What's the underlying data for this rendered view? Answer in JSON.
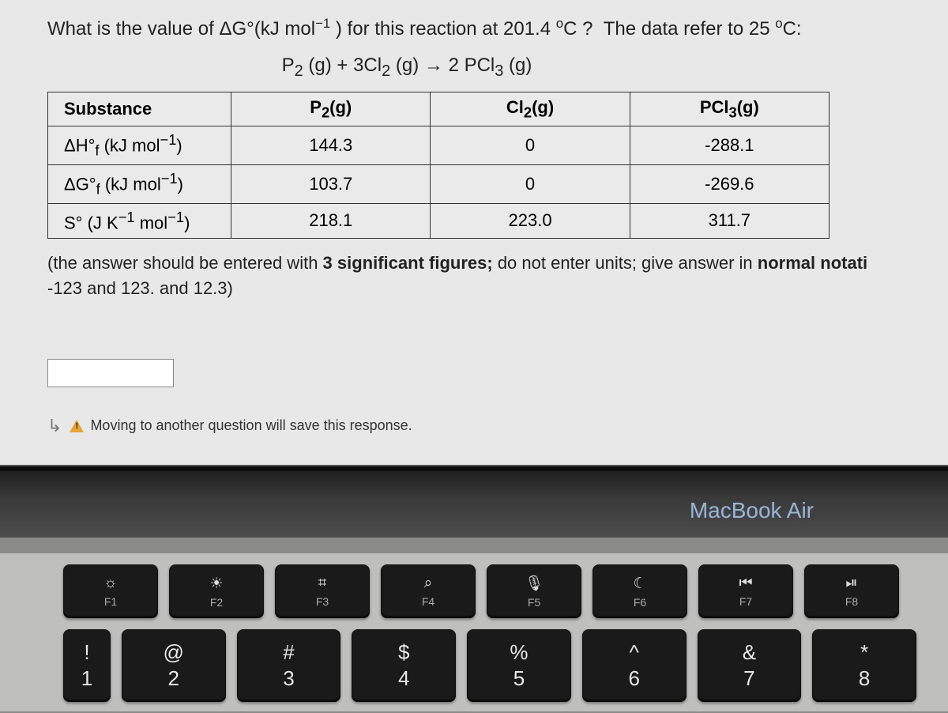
{
  "question": {
    "prefix": "What is the value of ΔG°(kJ mol",
    "exp1": "−1",
    "mid1": " ) for this reaction at ",
    "temp": "201.4",
    "deg": "°C",
    "mid2": " ?   The data refer to 25 ",
    "deg2": "°C:",
    "equation_html": "P<sub>2</sub> (g) + 3Cl<sub>2</sub> (g) → 2 PCl<sub>3</sub> (g)"
  },
  "table": {
    "headers": {
      "c0": "Substance",
      "c1_html": "P<sub>2</sub>(g)",
      "c2_html": "Cl<sub>2</sub>(g)",
      "c3_html": "PCl<sub>3</sub>(g)"
    },
    "rows": [
      {
        "label_html": "ΔH°<sub>f</sub> (kJ mol<sup>−1</sup>)",
        "v1": "144.3",
        "v2": "0",
        "v3": "-288.1"
      },
      {
        "label_html": "ΔG°<sub>f</sub> (kJ mol<sup>−1</sup>)",
        "v1": "103.7",
        "v2": "0",
        "v3": "-269.6"
      },
      {
        "label_html": "S° (J K<sup>−1</sup> mol<sup>−1</sup>)",
        "v1": "218.1",
        "v2": "223.0",
        "v3": "311.7"
      }
    ],
    "col_widths": [
      "230px",
      "250px",
      "250px",
      "250px"
    ],
    "border_color": "#333333",
    "bg_color": "#eaeaea",
    "font_size_pt": 16
  },
  "instruction": {
    "part1": "(the answer should be entered with ",
    "bold": "3 significant figures;",
    "part2": " do not enter units; give answer in ",
    "bold2": "normal notati",
    "line2": "-123 and 123. and 12.3)"
  },
  "save_notice": "Moving to another question will save this response.",
  "brand": "MacBook Air",
  "fkeys": [
    {
      "icon": "☼",
      "label": "F1",
      "name": "brightness-down-icon"
    },
    {
      "icon": "☀",
      "label": "F2",
      "name": "brightness-up-icon"
    },
    {
      "icon": "⌗",
      "label": "F3",
      "name": "mission-control-icon"
    },
    {
      "icon": "⌕",
      "label": "F4",
      "name": "search-icon"
    },
    {
      "icon": "🎙",
      "label": "F5",
      "name": "mic-icon"
    },
    {
      "icon": "☾",
      "label": "F6",
      "name": "dnd-icon"
    },
    {
      "icon": "⏮",
      "label": "F7",
      "name": "prev-track-icon"
    },
    {
      "icon": "⏯",
      "label": "F8",
      "name": "play-pause-icon"
    }
  ],
  "numkeys": [
    {
      "sym": "!",
      "num": "1"
    },
    {
      "sym": "@",
      "num": "2"
    },
    {
      "sym": "#",
      "num": "3"
    },
    {
      "sym": "$",
      "num": "4"
    },
    {
      "sym": "%",
      "num": "5"
    },
    {
      "sym": "^",
      "num": "6"
    },
    {
      "sym": "&",
      "num": "7"
    },
    {
      "sym": "*",
      "num": "8"
    }
  ],
  "colors": {
    "screen_bg": "#e8e8e8",
    "body_bg": "#8a8a88",
    "key_bg": "#1a1a1a",
    "keyboard_bg": "#bfbfbd",
    "brand_color": "#9bb6c9"
  }
}
